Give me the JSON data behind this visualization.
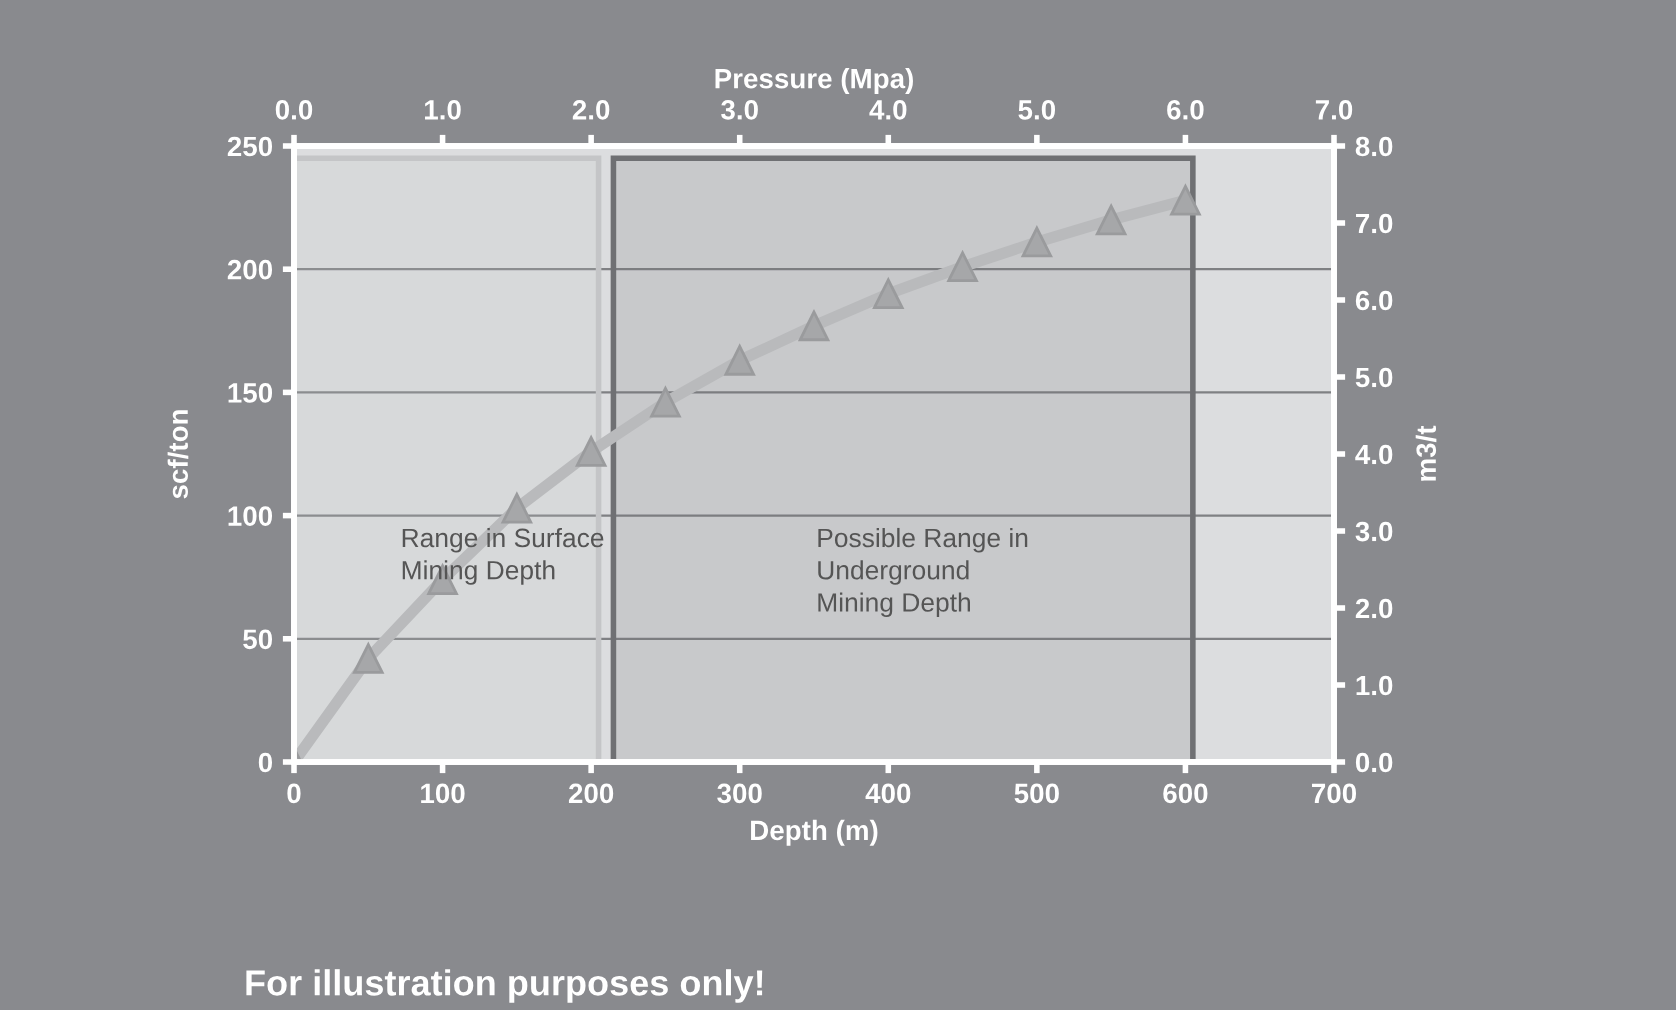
{
  "chart_data": {
    "type": "line",
    "xlabel": "Depth (m)",
    "ylabel": "scf/ton",
    "x2label": "Pressure (Mpa)",
    "y2label": "m3/t",
    "x": [
      0,
      50,
      100,
      150,
      200,
      250,
      300,
      350,
      400,
      450,
      500,
      550,
      600
    ],
    "series": [
      {
        "color": "#b9babc",
        "values": [
          0,
          42,
          74,
          103,
          126,
          146,
          163,
          177,
          190,
          201,
          211,
          220,
          228
        ]
      }
    ],
    "marker": "triangle",
    "xlim": [
      0,
      700
    ],
    "xticks": [
      0,
      100,
      200,
      300,
      400,
      500,
      600,
      700
    ],
    "ylim": [
      0,
      250
    ],
    "yticks": [
      0,
      50,
      100,
      150,
      200,
      250
    ],
    "x2lim": [
      0,
      7
    ],
    "x2ticks": [
      {
        "value": 0,
        "label": "0.0"
      },
      {
        "value": 1,
        "label": "1.0"
      },
      {
        "value": 2,
        "label": "2.0"
      },
      {
        "value": 3,
        "label": "3.0"
      },
      {
        "value": 4,
        "label": "4.0"
      },
      {
        "value": 5,
        "label": "5.0"
      },
      {
        "value": 6,
        "label": "6.0"
      },
      {
        "value": 7,
        "label": "7.0"
      }
    ],
    "y2lim": [
      0,
      8
    ],
    "y2ticks": [
      {
        "value": 0,
        "label": "0.0"
      },
      {
        "value": 1,
        "label": "1.0"
      },
      {
        "value": 2,
        "label": "2.0"
      },
      {
        "value": 3,
        "label": "3.0"
      },
      {
        "value": 4,
        "label": "4.0"
      },
      {
        "value": 5,
        "label": "5.0"
      },
      {
        "value": 6,
        "label": "6.0"
      },
      {
        "value": 7,
        "label": "7.0"
      },
      {
        "value": 8,
        "label": "8.0"
      }
    ],
    "grid": "y",
    "bands": [
      {
        "axis": "x",
        "from": 0,
        "to": 205,
        "label": "Range in Surface\nMining Depth",
        "color": "#c4c5c7"
      },
      {
        "axis": "x",
        "from": 215,
        "to": 605,
        "label": "Possible Range in\nUnderground\nMining Depth",
        "color": "#6f7073"
      }
    ],
    "annotations": [
      "For illustration purposes only!"
    ]
  }
}
